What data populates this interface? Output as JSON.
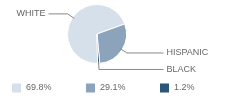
{
  "chart_data": {
    "type": "pie",
    "categories": [
      "WHITE",
      "HISPANIC",
      "BLACK"
    ],
    "values": [
      69.8,
      29.1,
      1.2
    ],
    "value_labels": [
      "69.8%",
      "29.1%",
      "1.2%"
    ],
    "colors": [
      "#d5e0ea",
      "#8ba3bb",
      "#2b5677"
    ],
    "legend": "bottom"
  }
}
